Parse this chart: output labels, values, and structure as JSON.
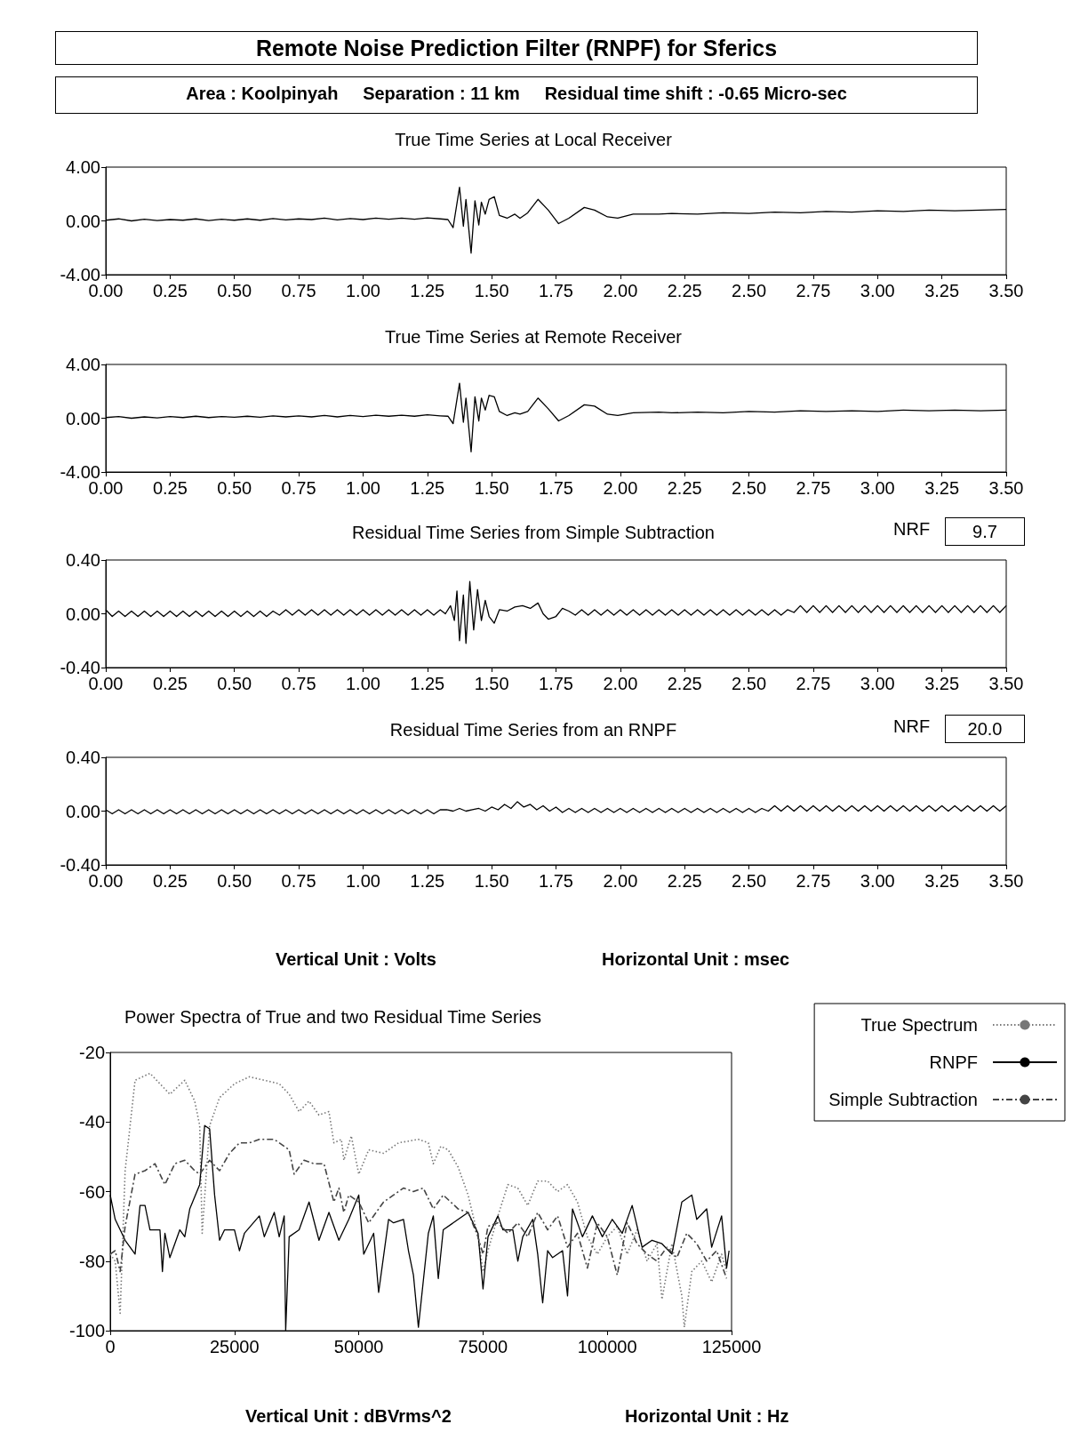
{
  "chart_data": [
    {
      "type": "line",
      "title": "True Time Series at Local Receiver",
      "annotations": [
        "Remote Noise Prediction Filter (RNPF) for Sferics",
        "Area : Koolpinyah     Separation : 11 km     Residual time shift : -0.65 Micro-sec"
      ],
      "marker": "none",
      "grid": false,
      "xlim": [
        0,
        3.5
      ],
      "ylim": [
        -4,
        4
      ],
      "xticks": [
        {
          "value": 0,
          "label": "0.00"
        },
        {
          "value": 0.25,
          "label": "0.25"
        },
        {
          "value": 0.5,
          "label": "0.50"
        },
        {
          "value": 0.75,
          "label": "0.75"
        },
        {
          "value": 1,
          "label": "1.00"
        },
        {
          "value": 1.25,
          "label": "1.25"
        },
        {
          "value": 1.5,
          "label": "1.50"
        },
        {
          "value": 1.75,
          "label": "1.75"
        },
        {
          "value": 2,
          "label": "2.00"
        },
        {
          "value": 2.25,
          "label": "2.25"
        },
        {
          "value": 2.5,
          "label": "2.50"
        },
        {
          "value": 2.75,
          "label": "2.75"
        },
        {
          "value": 3,
          "label": "3.00"
        },
        {
          "value": 3.25,
          "label": "3.25"
        },
        {
          "value": 3.5,
          "label": "3.50"
        }
      ],
      "yticks": [
        {
          "value": 4,
          "label": "4.00"
        },
        {
          "value": 0,
          "label": "0.00"
        },
        {
          "value": -4,
          "label": "-4.00"
        }
      ],
      "series": [
        {
          "color": "#000000",
          "x": [
            0,
            0.05,
            0.1,
            0.15,
            0.2,
            0.25,
            0.3,
            0.35,
            0.4,
            0.45,
            0.5,
            0.55,
            0.6,
            0.65,
            0.7,
            0.75,
            0.8,
            0.85,
            0.9,
            0.95,
            1,
            1.05,
            1.1,
            1.15,
            1.2,
            1.25,
            1.3,
            1.33,
            1.35,
            1.375,
            1.39,
            1.4,
            1.42,
            1.435,
            1.45,
            1.46,
            1.475,
            1.49,
            1.51,
            1.53,
            1.56,
            1.59,
            1.61,
            1.64,
            1.68,
            1.72,
            1.76,
            1.8,
            1.86,
            1.9,
            1.95,
            1.99,
            2.05,
            2.15,
            2.2,
            2.3,
            2.4,
            2.5,
            2.6,
            2.7,
            2.8,
            2.9,
            3,
            3.1,
            3.2,
            3.3,
            3.4,
            3.5
          ],
          "values": [
            0.05,
            0.15,
            0.0,
            0.12,
            0.02,
            0.1,
            0.05,
            0.15,
            0.03,
            0.12,
            0.05,
            0.15,
            0.05,
            0.18,
            0.08,
            0.15,
            0.1,
            0.2,
            0.08,
            0.18,
            0.1,
            0.2,
            0.12,
            0.2,
            0.12,
            0.22,
            0.15,
            0.1,
            -0.5,
            2.5,
            -0.4,
            1.6,
            -2.4,
            1.5,
            -0.3,
            1.4,
            0.5,
            1.6,
            1.8,
            0.4,
            0.2,
            0.5,
            0.2,
            0.6,
            1.6,
            0.8,
            -0.2,
            0.2,
            1.0,
            0.8,
            0.3,
            0.2,
            0.5,
            0.5,
            0.55,
            0.5,
            0.6,
            0.55,
            0.65,
            0.6,
            0.7,
            0.65,
            0.75,
            0.7,
            0.8,
            0.75,
            0.8,
            0.85
          ]
        }
      ]
    },
    {
      "type": "line",
      "title": "True Time Series at Remote Receiver",
      "marker": "none",
      "grid": false,
      "xlim": [
        0,
        3.5
      ],
      "ylim": [
        -4,
        4
      ],
      "xticks": [
        {
          "value": 0,
          "label": "0.00"
        },
        {
          "value": 0.25,
          "label": "0.25"
        },
        {
          "value": 0.5,
          "label": "0.50"
        },
        {
          "value": 0.75,
          "label": "0.75"
        },
        {
          "value": 1,
          "label": "1.00"
        },
        {
          "value": 1.25,
          "label": "1.25"
        },
        {
          "value": 1.5,
          "label": "1.50"
        },
        {
          "value": 1.75,
          "label": "1.75"
        },
        {
          "value": 2,
          "label": "2.00"
        },
        {
          "value": 2.25,
          "label": "2.25"
        },
        {
          "value": 2.5,
          "label": "2.50"
        },
        {
          "value": 2.75,
          "label": "2.75"
        },
        {
          "value": 3,
          "label": "3.00"
        },
        {
          "value": 3.25,
          "label": "3.25"
        },
        {
          "value": 3.5,
          "label": "3.50"
        }
      ],
      "yticks": [
        {
          "value": 4,
          "label": "4.00"
        },
        {
          "value": 0,
          "label": "0.00"
        },
        {
          "value": -4,
          "label": "-4.00"
        }
      ],
      "series": [
        {
          "color": "#000000",
          "x": [
            0,
            0.05,
            0.1,
            0.15,
            0.2,
            0.25,
            0.3,
            0.35,
            0.4,
            0.45,
            0.5,
            0.55,
            0.6,
            0.65,
            0.7,
            0.75,
            0.8,
            0.85,
            0.9,
            0.95,
            1,
            1.05,
            1.1,
            1.15,
            1.2,
            1.25,
            1.3,
            1.33,
            1.35,
            1.375,
            1.39,
            1.4,
            1.42,
            1.435,
            1.45,
            1.46,
            1.475,
            1.49,
            1.51,
            1.53,
            1.56,
            1.59,
            1.61,
            1.64,
            1.68,
            1.72,
            1.76,
            1.8,
            1.86,
            1.9,
            1.95,
            1.99,
            2.05,
            2.15,
            2.2,
            2.3,
            2.4,
            2.5,
            2.6,
            2.7,
            2.8,
            2.9,
            3,
            3.1,
            3.2,
            3.3,
            3.4,
            3.5
          ],
          "values": [
            0.05,
            0.12,
            0.0,
            0.1,
            0.02,
            0.12,
            0.05,
            0.15,
            0.05,
            0.12,
            0.08,
            0.15,
            0.08,
            0.18,
            0.1,
            0.18,
            0.1,
            0.2,
            0.1,
            0.2,
            0.12,
            0.22,
            0.15,
            0.22,
            0.15,
            0.25,
            0.18,
            0.15,
            -0.4,
            2.6,
            -0.3,
            1.5,
            -2.5,
            1.6,
            -0.2,
            1.5,
            0.6,
            1.7,
            1.6,
            0.5,
            0.2,
            0.4,
            0.3,
            0.5,
            1.5,
            0.7,
            -0.2,
            0.2,
            1.0,
            0.9,
            0.3,
            0.2,
            0.4,
            0.45,
            0.4,
            0.45,
            0.4,
            0.5,
            0.45,
            0.55,
            0.5,
            0.55,
            0.5,
            0.6,
            0.55,
            0.6,
            0.55,
            0.6
          ]
        }
      ]
    },
    {
      "type": "line",
      "title": "Residual Time Series from Simple Subtraction",
      "annotations": [
        "NRF",
        "9.7"
      ],
      "marker": "none",
      "grid": false,
      "xlim": [
        0,
        3.5
      ],
      "ylim": [
        -0.4,
        0.4
      ],
      "xticks": [
        {
          "value": 0,
          "label": "0.00"
        },
        {
          "value": 0.25,
          "label": "0.25"
        },
        {
          "value": 0.5,
          "label": "0.50"
        },
        {
          "value": 0.75,
          "label": "0.75"
        },
        {
          "value": 1,
          "label": "1.00"
        },
        {
          "value": 1.25,
          "label": "1.25"
        },
        {
          "value": 1.5,
          "label": "1.50"
        },
        {
          "value": 1.75,
          "label": "1.75"
        },
        {
          "value": 2,
          "label": "2.00"
        },
        {
          "value": 2.25,
          "label": "2.25"
        },
        {
          "value": 2.5,
          "label": "2.50"
        },
        {
          "value": 2.75,
          "label": "2.75"
        },
        {
          "value": 3,
          "label": "3.00"
        },
        {
          "value": 3.25,
          "label": "3.25"
        },
        {
          "value": 3.5,
          "label": "3.50"
        }
      ],
      "yticks": [
        {
          "value": 0.4,
          "label": "0.40"
        },
        {
          "value": 0,
          "label": "0.00"
        },
        {
          "value": -0.4,
          "label": "-0.40"
        }
      ],
      "series": [
        {
          "color": "#000000",
          "x": [
            0,
            0.025,
            0.05,
            0.075,
            0.1,
            0.125,
            0.15,
            0.175,
            0.2,
            0.225,
            0.25,
            0.275,
            0.3,
            0.325,
            0.35,
            0.375,
            0.4,
            0.425,
            0.45,
            0.475,
            0.5,
            0.525,
            0.55,
            0.575,
            0.6,
            0.625,
            0.65,
            0.675,
            0.7,
            0.725,
            0.75,
            0.775,
            0.8,
            0.825,
            0.85,
            0.875,
            0.9,
            0.925,
            0.95,
            0.975,
            1,
            1.025,
            1.05,
            1.075,
            1.1,
            1.125,
            1.15,
            1.175,
            1.2,
            1.225,
            1.25,
            1.275,
            1.3,
            1.32,
            1.34,
            1.355,
            1.365,
            1.375,
            1.39,
            1.4,
            1.415,
            1.43,
            1.445,
            1.46,
            1.475,
            1.49,
            1.51,
            1.53,
            1.56,
            1.59,
            1.62,
            1.65,
            1.68,
            1.7,
            1.72,
            1.75,
            1.775,
            1.8,
            1.825,
            1.85,
            1.875,
            1.9,
            1.925,
            1.95,
            1.975,
            2,
            2.025,
            2.05,
            2.075,
            2.1,
            2.125,
            2.15,
            2.175,
            2.2,
            2.225,
            2.25,
            2.275,
            2.3,
            2.325,
            2.35,
            2.375,
            2.4,
            2.425,
            2.45,
            2.475,
            2.5,
            2.525,
            2.55,
            2.575,
            2.6,
            2.625,
            2.65,
            2.675,
            2.7,
            2.725,
            2.75,
            2.775,
            2.8,
            2.825,
            2.85,
            2.875,
            2.9,
            2.925,
            2.95,
            2.975,
            3,
            3.025,
            3.05,
            3.075,
            3.1,
            3.125,
            3.15,
            3.175,
            3.2,
            3.225,
            3.25,
            3.275,
            3.3,
            3.325,
            3.35,
            3.375,
            3.4,
            3.425,
            3.45,
            3.475,
            3.5
          ],
          "values": [
            0.03,
            -0.02,
            0.02,
            -0.02,
            0.02,
            -0.02,
            0.02,
            -0.02,
            0.02,
            -0.02,
            0.02,
            -0.02,
            0.02,
            -0.02,
            0.02,
            -0.02,
            0.02,
            -0.02,
            0.02,
            -0.02,
            0.02,
            -0.02,
            0.02,
            -0.02,
            0.02,
            -0.02,
            0.02,
            -0.01,
            0.03,
            -0.01,
            0.03,
            -0.01,
            0.03,
            -0.01,
            0.03,
            -0.01,
            0.03,
            -0.01,
            0.03,
            -0.01,
            0.03,
            -0.01,
            0.03,
            -0.01,
            0.03,
            -0.01,
            0.03,
            -0.01,
            0.03,
            -0.01,
            0.03,
            -0.01,
            0.03,
            0.0,
            0.06,
            -0.05,
            0.17,
            -0.2,
            0.14,
            -0.22,
            0.24,
            -0.12,
            0.18,
            -0.05,
            0.1,
            -0.02,
            -0.07,
            0.03,
            0.02,
            0.05,
            0.06,
            0.04,
            0.08,
            0.0,
            -0.04,
            -0.02,
            0.04,
            0.02,
            -0.01,
            0.03,
            -0.01,
            0.03,
            -0.01,
            0.03,
            -0.01,
            0.03,
            -0.01,
            0.03,
            -0.01,
            0.03,
            -0.01,
            0.03,
            -0.01,
            0.03,
            -0.01,
            0.03,
            -0.01,
            0.03,
            -0.01,
            0.03,
            -0.01,
            0.03,
            -0.01,
            0.03,
            -0.01,
            0.03,
            -0.01,
            0.03,
            -0.01,
            0.03,
            -0.01,
            0.03,
            0.01,
            0.06,
            0.01,
            0.06,
            0.01,
            0.06,
            0.01,
            0.06,
            0.01,
            0.06,
            0.01,
            0.06,
            0.01,
            0.06,
            0.01,
            0.06,
            0.01,
            0.06,
            0.01,
            0.06,
            0.01,
            0.06,
            0.01,
            0.06,
            0.01,
            0.06,
            0.01,
            0.06,
            0.01,
            0.06,
            0.01,
            0.06,
            0.01,
            0.06
          ]
        }
      ]
    },
    {
      "type": "line",
      "title": "Residual Time Series from an RNPF",
      "annotations": [
        "NRF",
        "20.0",
        "Vertical Unit : Volts"
      ],
      "xlabel": "Horizontal Unit : msec",
      "marker": "none",
      "grid": false,
      "xlim": [
        0,
        3.5
      ],
      "ylim": [
        -0.4,
        0.4
      ],
      "xticks": [
        {
          "value": 0,
          "label": "0.00"
        },
        {
          "value": 0.25,
          "label": "0.25"
        },
        {
          "value": 0.5,
          "label": "0.50"
        },
        {
          "value": 0.75,
          "label": "0.75"
        },
        {
          "value": 1,
          "label": "1.00"
        },
        {
          "value": 1.25,
          "label": "1.25"
        },
        {
          "value": 1.5,
          "label": "1.50"
        },
        {
          "value": 1.75,
          "label": "1.75"
        },
        {
          "value": 2,
          "label": "2.00"
        },
        {
          "value": 2.25,
          "label": "2.25"
        },
        {
          "value": 2.5,
          "label": "2.50"
        },
        {
          "value": 2.75,
          "label": "2.75"
        },
        {
          "value": 3,
          "label": "3.00"
        },
        {
          "value": 3.25,
          "label": "3.25"
        },
        {
          "value": 3.5,
          "label": "3.50"
        }
      ],
      "yticks": [
        {
          "value": 0.4,
          "label": "0.40"
        },
        {
          "value": 0,
          "label": "0.00"
        },
        {
          "value": -0.4,
          "label": "-0.40"
        }
      ],
      "series": [
        {
          "color": "#000000",
          "x": [
            0,
            0.025,
            0.05,
            0.075,
            0.1,
            0.125,
            0.15,
            0.175,
            0.2,
            0.225,
            0.25,
            0.275,
            0.3,
            0.325,
            0.35,
            0.375,
            0.4,
            0.425,
            0.45,
            0.475,
            0.5,
            0.525,
            0.55,
            0.575,
            0.6,
            0.625,
            0.65,
            0.675,
            0.7,
            0.725,
            0.75,
            0.775,
            0.8,
            0.825,
            0.85,
            0.875,
            0.9,
            0.925,
            0.95,
            0.975,
            1,
            1.025,
            1.05,
            1.075,
            1.1,
            1.125,
            1.15,
            1.175,
            1.2,
            1.225,
            1.25,
            1.275,
            1.3,
            1.325,
            1.35,
            1.375,
            1.4,
            1.425,
            1.45,
            1.475,
            1.5,
            1.525,
            1.55,
            1.575,
            1.6,
            1.625,
            1.65,
            1.675,
            1.7,
            1.725,
            1.75,
            1.775,
            1.8,
            1.825,
            1.85,
            1.875,
            1.9,
            1.925,
            1.95,
            1.975,
            2,
            2.025,
            2.05,
            2.075,
            2.1,
            2.125,
            2.15,
            2.175,
            2.2,
            2.225,
            2.25,
            2.275,
            2.3,
            2.325,
            2.35,
            2.375,
            2.4,
            2.425,
            2.45,
            2.475,
            2.5,
            2.525,
            2.55,
            2.575,
            2.6,
            2.625,
            2.65,
            2.675,
            2.7,
            2.725,
            2.75,
            2.775,
            2.8,
            2.825,
            2.85,
            2.875,
            2.9,
            2.925,
            2.95,
            2.975,
            3,
            3.025,
            3.05,
            3.075,
            3.1,
            3.125,
            3.15,
            3.175,
            3.2,
            3.225,
            3.25,
            3.275,
            3.3,
            3.325,
            3.35,
            3.375,
            3.4,
            3.425,
            3.45,
            3.475,
            3.5
          ],
          "values": [
            0.01,
            -0.02,
            0.01,
            -0.02,
            0.01,
            -0.02,
            0.01,
            -0.02,
            0.01,
            -0.02,
            0.01,
            -0.02,
            0.01,
            -0.02,
            0.01,
            -0.02,
            0.01,
            -0.02,
            0.01,
            -0.02,
            0.01,
            -0.02,
            0.01,
            -0.02,
            0.01,
            -0.02,
            0.01,
            -0.02,
            0.01,
            -0.02,
            0.01,
            -0.02,
            0.01,
            -0.02,
            0.01,
            -0.02,
            0.01,
            -0.02,
            0.01,
            -0.02,
            0.01,
            -0.02,
            0.01,
            -0.02,
            0.01,
            -0.02,
            0.01,
            -0.02,
            0.01,
            -0.02,
            0.01,
            -0.02,
            0.01,
            0.01,
            0.0,
            0.02,
            0.0,
            0.01,
            0.02,
            0.0,
            0.03,
            0.01,
            0.05,
            0.02,
            0.07,
            0.03,
            0.05,
            0.01,
            0.04,
            0.0,
            0.03,
            -0.01,
            0.02,
            -0.01,
            0.02,
            -0.01,
            0.02,
            -0.01,
            0.02,
            -0.01,
            0.02,
            -0.01,
            0.02,
            -0.01,
            0.02,
            -0.01,
            0.02,
            -0.01,
            0.02,
            -0.01,
            0.02,
            -0.01,
            0.02,
            -0.01,
            0.02,
            -0.01,
            0.02,
            -0.01,
            0.02,
            -0.01,
            0.02,
            -0.01,
            0.02,
            0.0,
            0.04,
            0.0,
            0.04,
            0.0,
            0.04,
            0.0,
            0.04,
            0.0,
            0.04,
            0.0,
            0.04,
            0.0,
            0.04,
            0.0,
            0.04,
            0.0,
            0.04,
            0.0,
            0.04,
            0.0,
            0.04,
            0.0,
            0.04,
            0.0,
            0.04,
            0.0,
            0.04,
            0.0,
            0.04,
            0.0,
            0.04,
            0.0,
            0.04,
            0.0,
            0.04,
            0.0,
            0.04
          ]
        }
      ]
    },
    {
      "type": "line",
      "title": "Power Spectra of True and two Residual Time Series",
      "annotations": [
        "Vertical Unit : dBVrms^2"
      ],
      "xlabel": "Horizontal Unit : Hz",
      "marker": "none",
      "grid": false,
      "legend": "right",
      "xlim": [
        0,
        125000
      ],
      "ylim": [
        -100,
        -20
      ],
      "xticks": [
        0,
        25000,
        50000,
        75000,
        100000,
        125000
      ],
      "yticks": [
        -20,
        -40,
        -60,
        -80,
        -100
      ],
      "series": [
        {
          "name": "True Spectrum",
          "color": "#777777",
          "line_style": "dotted",
          "x": [
            0,
            1000,
            2000,
            3000,
            5000,
            8000,
            10000,
            12000,
            15000,
            17000,
            18000,
            18500,
            20000,
            22000,
            25000,
            28000,
            31000,
            34000,
            36000,
            38000,
            40000,
            42000,
            44000,
            45000,
            46500,
            47000,
            48500,
            50000,
            52000,
            55000,
            58000,
            62000,
            64000,
            65000,
            66500,
            68000,
            70000,
            72000,
            74000,
            75000,
            76000,
            78000,
            80000,
            82000,
            84000,
            86000,
            88000,
            90000,
            92000,
            94000,
            96000,
            98000,
            100000,
            102000,
            104000,
            106000,
            108000,
            110000,
            111000,
            113000,
            115000,
            115500,
            117000,
            119000,
            121000,
            123000,
            124000
          ],
          "values": [
            -78,
            -80,
            -95,
            -54,
            -28,
            -26,
            -29,
            -32,
            -28,
            -34,
            -41,
            -72,
            -41,
            -33,
            -29,
            -27,
            -28,
            -29,
            -32,
            -37,
            -34,
            -38,
            -37,
            -46,
            -45,
            -51,
            -44,
            -55,
            -48,
            -49,
            -46,
            -45,
            -46,
            -52,
            -47,
            -48,
            -53,
            -61,
            -73,
            -83,
            -77,
            -67,
            -58,
            -59,
            -64,
            -57,
            -57,
            -60,
            -58,
            -63,
            -73,
            -78,
            -73,
            -70,
            -78,
            -71,
            -80,
            -75,
            -91,
            -75,
            -90,
            -99,
            -83,
            -80,
            -86,
            -78,
            -83
          ]
        },
        {
          "name": "RNPF",
          "color": "#000000",
          "line_style": "solid",
          "x": [
            0,
            1000,
            2000,
            3000,
            4000,
            5000,
            6000,
            7000,
            8000,
            10000,
            10500,
            11000,
            12000,
            14000,
            15000,
            16000,
            18000,
            19000,
            20000,
            21000,
            22000,
            23000,
            25000,
            26000,
            27000,
            30000,
            31000,
            33000,
            34000,
            35000,
            35300,
            36000,
            38000,
            40000,
            42000,
            44000,
            46000,
            48000,
            50000,
            51000,
            53000,
            54000,
            56000,
            57000,
            59000,
            60000,
            61000,
            62000,
            64000,
            65000,
            66000,
            67000,
            70000,
            72000,
            74000,
            75000,
            76000,
            78000,
            79000,
            81000,
            82000,
            83000,
            85000,
            86000,
            87000,
            88000,
            89000,
            91000,
            92000,
            93000,
            95000,
            97000,
            99000,
            101000,
            103000,
            105000,
            107000,
            109000,
            111000,
            113000,
            115000,
            117000,
            118000,
            120000,
            121000,
            123000,
            124000,
            124500
          ],
          "values": [
            -61,
            -68,
            -71,
            -74,
            -76,
            -78,
            -64,
            -64,
            -71,
            -71,
            -83,
            -72,
            -79,
            -71,
            -73,
            -65,
            -58,
            -41,
            -42,
            -61,
            -74,
            -71,
            -71,
            -77,
            -72,
            -67,
            -73,
            -66,
            -73,
            -67,
            -100,
            -73,
            -71,
            -63,
            -74,
            -66,
            -74,
            -68,
            -61,
            -78,
            -72,
            -89,
            -68,
            -69,
            -68,
            -77,
            -84,
            -99,
            -72,
            -67,
            -85,
            -71,
            -68,
            -66,
            -72,
            -88,
            -73,
            -67,
            -71,
            -71,
            -80,
            -73,
            -68,
            -78,
            -92,
            -77,
            -79,
            -77,
            -90,
            -65,
            -73,
            -67,
            -73,
            -68,
            -72,
            -64,
            -76,
            -74,
            -75,
            -78,
            -63,
            -61,
            -68,
            -65,
            -76,
            -67,
            -82,
            -77
          ]
        },
        {
          "name": "Simple Subtraction",
          "color": "#444444",
          "line_style": "dashed",
          "x": [
            0,
            1000,
            2000,
            3000,
            5000,
            7000,
            9000,
            11000,
            13000,
            15000,
            17000,
            18000,
            20000,
            22000,
            24000,
            26000,
            28000,
            30000,
            33000,
            36000,
            37000,
            39000,
            41000,
            43000,
            45000,
            46000,
            47000,
            48000,
            50000,
            52000,
            55000,
            57000,
            59000,
            61000,
            63000,
            65000,
            67000,
            70000,
            72000,
            74000,
            75000,
            76000,
            78000,
            80000,
            82000,
            84000,
            86000,
            88000,
            90000,
            92000,
            94000,
            96000,
            98000,
            100000,
            102000,
            104000,
            106000,
            108000,
            110000,
            112000,
            114000,
            116000,
            118000,
            120000,
            122000,
            124000
          ],
          "values": [
            -78,
            -77,
            -83,
            -70,
            -55,
            -54,
            -52,
            -58,
            -52,
            -51,
            -54,
            -55,
            -51,
            -54,
            -49,
            -46,
            -46,
            -45,
            -45,
            -48,
            -55,
            -51,
            -52,
            -52,
            -63,
            -59,
            -66,
            -61,
            -63,
            -69,
            -63,
            -61,
            -59,
            -60,
            -59,
            -65,
            -61,
            -65,
            -66,
            -73,
            -78,
            -70,
            -69,
            -72,
            -69,
            -73,
            -66,
            -71,
            -67,
            -76,
            -72,
            -82,
            -69,
            -73,
            -84,
            -69,
            -75,
            -78,
            -80,
            -76,
            -79,
            -72,
            -75,
            -80,
            -77,
            -85
          ]
        }
      ]
    }
  ]
}
